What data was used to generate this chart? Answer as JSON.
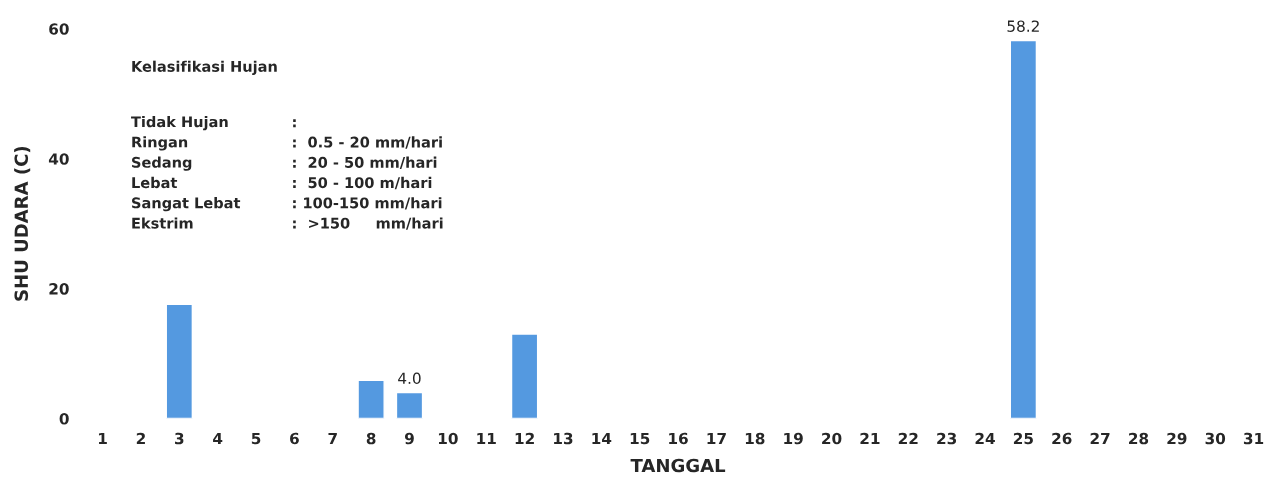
{
  "chart_data": {
    "type": "bar",
    "xlabel": "TANGGAL",
    "ylabel": "SHU UDARA (C)",
    "categories": [
      "1",
      "2",
      "3",
      "4",
      "5",
      "6",
      "7",
      "8",
      "9",
      "10",
      "11",
      "12",
      "13",
      "14",
      "15",
      "16",
      "17",
      "18",
      "19",
      "20",
      "21",
      "22",
      "23",
      "24",
      "25",
      "26",
      "27",
      "28",
      "29",
      "30",
      "31"
    ],
    "values": [
      null,
      null,
      17.6,
      null,
      null,
      null,
      null,
      5.9,
      4.0,
      null,
      null,
      13.0,
      null,
      null,
      null,
      null,
      null,
      null,
      null,
      null,
      null,
      null,
      null,
      null,
      58.2,
      null,
      null,
      null,
      null,
      null,
      null
    ],
    "value_labels": [
      null,
      null,
      null,
      null,
      null,
      null,
      null,
      null,
      "4.0",
      null,
      null,
      null,
      null,
      null,
      null,
      null,
      null,
      null,
      null,
      null,
      null,
      null,
      null,
      null,
      "58.2",
      null,
      null,
      null,
      null,
      null,
      null
    ],
    "color": "#5499e0",
    "ylim": [
      0,
      60
    ],
    "yticks": [
      0,
      20,
      40,
      60
    ],
    "grid": false,
    "annotations": [
      "Kelasifikasi Hujan",
      "Tidak Hujan:",
      "Ringan:  0.5 - 20 mm/hari",
      "Sedang:  20 - 50 mm/hari",
      "Lebat:  50 - 100 m/hari",
      "Sangat Lebat: 100-150 mm/hari",
      "Ekstrim:  >150     mm/hari"
    ]
  }
}
